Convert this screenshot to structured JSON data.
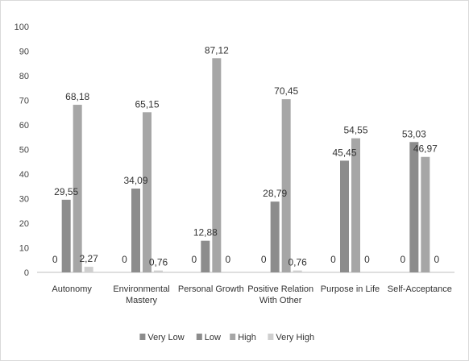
{
  "chart_data": {
    "type": "bar",
    "title": "",
    "xlabel": "",
    "ylabel": "",
    "ylim": [
      0,
      100
    ],
    "yticks": [
      0,
      10,
      20,
      30,
      40,
      50,
      60,
      70,
      80,
      90,
      100
    ],
    "grid": false,
    "legend_position": "bottom",
    "categories": [
      [
        "Autonomy"
      ],
      [
        "Environmental",
        "Mastery"
      ],
      [
        "Personal Growth"
      ],
      [
        "Positive Relation",
        "With Other"
      ],
      [
        "Purpose in Life"
      ],
      [
        "Self-Acceptance"
      ]
    ],
    "series": [
      {
        "name": "Very Low",
        "color": "#8c8c8c",
        "values": [
          0,
          0,
          0,
          0,
          0,
          0
        ],
        "labels": [
          "0",
          "0",
          "0",
          "0",
          "0",
          "0"
        ]
      },
      {
        "name": "Low",
        "color": "#8c8c8c",
        "values": [
          29.55,
          34.09,
          12.88,
          28.79,
          45.45,
          53.03
        ],
        "labels": [
          "29,55",
          "34,09",
          "12,88",
          "28,79",
          "45,45",
          "53,03"
        ]
      },
      {
        "name": "High",
        "color": "#a6a6a6",
        "values": [
          68.18,
          65.15,
          87.12,
          70.45,
          54.55,
          46.97
        ],
        "labels": [
          "68,18",
          "65,15",
          "87,12",
          "70,45",
          "54,55",
          "46,97"
        ]
      },
      {
        "name": "Very High",
        "color": "#cfcfcf",
        "values": [
          2.27,
          0.76,
          0,
          0.76,
          0,
          0
        ],
        "labels": [
          "2,27",
          "0,76",
          "0",
          "0,76",
          "0",
          "0"
        ]
      }
    ]
  }
}
